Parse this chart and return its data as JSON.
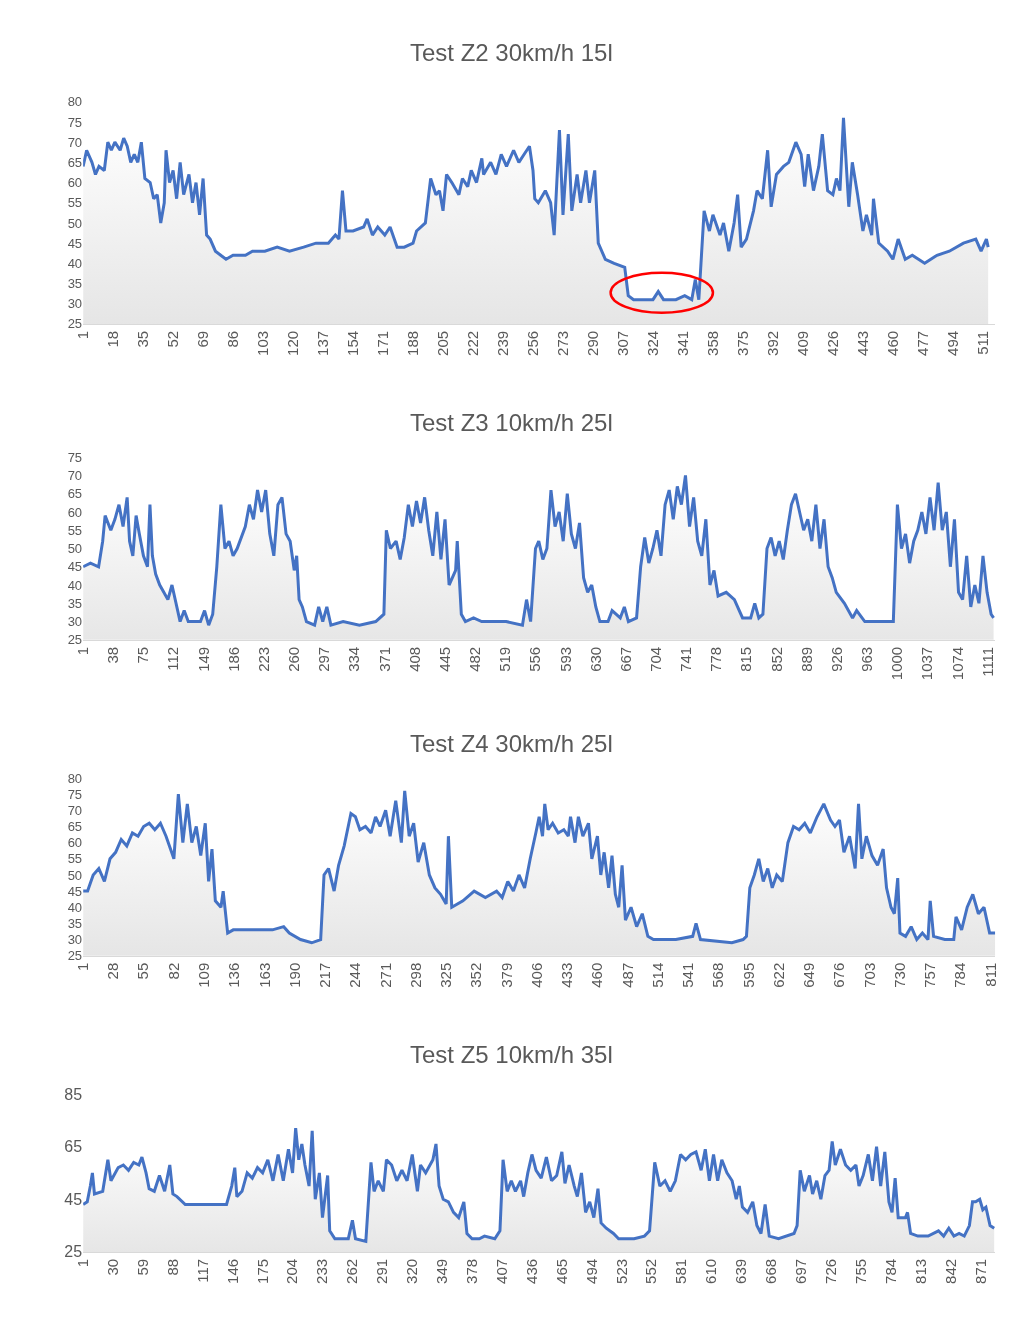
{
  "chart_data": [
    {
      "type": "area",
      "title": "Test Z2 30km/h 15l",
      "xlim": [
        1,
        518
      ],
      "ylim": [
        25,
        80
      ],
      "yticks": [
        25,
        30,
        35,
        40,
        45,
        50,
        55,
        60,
        65,
        70,
        75,
        80
      ],
      "xticks": [
        1,
        18,
        35,
        52,
        69,
        86,
        103,
        120,
        137,
        154,
        171,
        188,
        205,
        222,
        239,
        256,
        273,
        290,
        307,
        324,
        341,
        358,
        375,
        392,
        409,
        426,
        443,
        460,
        477,
        494,
        511
      ],
      "grid": false,
      "line_style": "solid",
      "marker": "none",
      "series": [
        {
          "color": "#4472c4",
          "x": [
            1,
            3,
            6,
            8,
            10,
            13,
            15,
            17,
            19,
            22,
            24,
            26,
            28,
            30,
            32,
            34,
            36,
            39,
            41,
            43,
            45,
            47,
            48,
            50,
            52,
            54,
            56,
            58,
            61,
            63,
            65,
            67,
            69,
            71,
            73,
            76,
            79,
            82,
            86,
            93,
            97,
            104,
            111,
            118,
            126,
            133,
            140,
            144,
            146,
            148,
            150,
            154,
            160,
            162,
            165,
            168,
            172,
            175,
            179,
            183,
            188,
            190,
            195,
            198,
            201,
            203,
            205,
            207,
            210,
            214,
            216,
            219,
            221,
            224,
            227,
            228,
            232,
            235,
            238,
            241,
            245,
            248,
            251,
            254,
            256,
            257,
            259,
            263,
            266,
            268,
            271,
            273,
            276,
            278,
            281,
            283,
            286,
            288,
            291,
            293,
            297,
            302,
            308,
            310,
            313,
            319,
            324,
            327,
            330,
            337,
            342,
            346,
            348,
            350,
            353,
            356,
            358,
            362,
            364,
            367,
            370,
            372,
            374,
            377,
            381,
            383,
            386,
            389,
            391,
            394,
            398,
            401,
            405,
            408,
            410,
            412,
            415,
            418,
            420,
            423,
            426,
            428,
            430,
            432,
            435,
            437,
            440,
            443,
            445,
            448,
            449,
            452,
            457,
            460,
            463,
            467,
            471,
            478,
            485,
            492,
            500,
            507,
            510,
            513,
            514
          ],
          "values": [
            64,
            68,
            65,
            62,
            64,
            63,
            70,
            68,
            70,
            68,
            71,
            69,
            65,
            67,
            65,
            70,
            61,
            60,
            56,
            57,
            50,
            55,
            68,
            60,
            63,
            56,
            65,
            57,
            62,
            55,
            60,
            52,
            61,
            47,
            46,
            43,
            42,
            41,
            42,
            42,
            43,
            43,
            44,
            43,
            44,
            45,
            45,
            47,
            46,
            58,
            48,
            48,
            49,
            51,
            47,
            49,
            47,
            49,
            44,
            44,
            45,
            48,
            50,
            61,
            57,
            58,
            53,
            62,
            60,
            57,
            61,
            59,
            63,
            60,
            66,
            62,
            65,
            62,
            67,
            64,
            68,
            65,
            67,
            69,
            63,
            56,
            55,
            58,
            55,
            47,
            73,
            52,
            72,
            53,
            62,
            55,
            63,
            55,
            63,
            45,
            41,
            40,
            39,
            32,
            31,
            31,
            31,
            33,
            31,
            31,
            32,
            31,
            36,
            31,
            53,
            48,
            52,
            47,
            50,
            43,
            50,
            57,
            44,
            46,
            53,
            58,
            56,
            68,
            54,
            62,
            64,
            65,
            70,
            67,
            59,
            67,
            58,
            64,
            72,
            58,
            57,
            61,
            58,
            76,
            54,
            65,
            57,
            48,
            52,
            47,
            56,
            45,
            43,
            41,
            46,
            41,
            42,
            40,
            42,
            43,
            45,
            46,
            43,
            46,
            44
          ]
        }
      ]
    },
    {
      "type": "area",
      "title": "Test Z3 10km/h 25l",
      "xlim": [
        1,
        1120
      ],
      "ylim": [
        25,
        75
      ],
      "yticks": [
        25,
        30,
        35,
        40,
        45,
        50,
        55,
        60,
        65,
        70,
        75
      ],
      "xticks": [
        1,
        38,
        75,
        112,
        149,
        186,
        223,
        260,
        297,
        334,
        371,
        408,
        445,
        482,
        519,
        556,
        593,
        630,
        667,
        704,
        741,
        778,
        815,
        852,
        889,
        926,
        963,
        1000,
        1037,
        1074,
        1111
      ],
      "grid": false,
      "line_style": "solid",
      "marker": "none",
      "series": [
        {
          "color": "#4472c4",
          "x": [
            1,
            10,
            20,
            25,
            28,
            35,
            40,
            45,
            50,
            55,
            58,
            62,
            66,
            70,
            75,
            80,
            83,
            86,
            90,
            95,
            100,
            105,
            110,
            120,
            125,
            130,
            145,
            150,
            155,
            160,
            165,
            170,
            175,
            180,
            185,
            190,
            200,
            205,
            210,
            215,
            220,
            225,
            230,
            235,
            240,
            245,
            250,
            255,
            260,
            263,
            266,
            270,
            275,
            285,
            290,
            295,
            300,
            305,
            320,
            340,
            360,
            370,
            373,
            378,
            385,
            390,
            395,
            400,
            405,
            410,
            415,
            420,
            425,
            430,
            435,
            440,
            445,
            450,
            458,
            460,
            465,
            470,
            480,
            490,
            520,
            540,
            545,
            550,
            556,
            560,
            565,
            570,
            575,
            580,
            585,
            590,
            595,
            600,
            605,
            610,
            615,
            620,
            625,
            630,
            635,
            645,
            650,
            660,
            665,
            670,
            680,
            685,
            690,
            695,
            700,
            705,
            710,
            715,
            720,
            725,
            730,
            735,
            740,
            745,
            750,
            755,
            760,
            765,
            770,
            775,
            780,
            790,
            800,
            810,
            820,
            825,
            830,
            835,
            840,
            845,
            850,
            855,
            860,
            865,
            870,
            875,
            880,
            885,
            890,
            895,
            900,
            905,
            910,
            915,
            920,
            925,
            935,
            945,
            950,
            960,
            980,
            995,
            1000,
            1005,
            1010,
            1015,
            1020,
            1025,
            1030,
            1035,
            1040,
            1045,
            1050,
            1055,
            1060,
            1065,
            1070,
            1075,
            1080,
            1085,
            1090,
            1095,
            1100,
            1105,
            1110,
            1115,
            1118
          ],
          "values": [
            45,
            46,
            45,
            52,
            59,
            55,
            58,
            62,
            56,
            64,
            52,
            48,
            59,
            54,
            48,
            45,
            62,
            48,
            43,
            40,
            38,
            36,
            40,
            30,
            33,
            30,
            30,
            33,
            29,
            32,
            45,
            62,
            50,
            52,
            48,
            50,
            56,
            62,
            58,
            66,
            60,
            66,
            54,
            48,
            62,
            64,
            54,
            52,
            44,
            48,
            36,
            34,
            30,
            29,
            34,
            30,
            34,
            29,
            30,
            29,
            30,
            32,
            55,
            50,
            52,
            47,
            53,
            62,
            56,
            63,
            57,
            64,
            55,
            48,
            60,
            47,
            58,
            40,
            44,
            52,
            32,
            30,
            31,
            30,
            30,
            29,
            36,
            30,
            50,
            52,
            47,
            50,
            66,
            56,
            60,
            52,
            65,
            54,
            50,
            57,
            42,
            38,
            40,
            34,
            30,
            30,
            33,
            31,
            34,
            30,
            31,
            45,
            53,
            46,
            50,
            55,
            48,
            62,
            66,
            58,
            67,
            62,
            70,
            56,
            64,
            52,
            48,
            58,
            40,
            44,
            37,
            38,
            36,
            31,
            31,
            35,
            31,
            32,
            50,
            53,
            48,
            52,
            47,
            55,
            62,
            65,
            60,
            55,
            58,
            52,
            62,
            50,
            58,
            45,
            42,
            38,
            35,
            31,
            33,
            30,
            30,
            30,
            62,
            50,
            54,
            46,
            52,
            55,
            60,
            54,
            64,
            55,
            68,
            55,
            60,
            45,
            58,
            38,
            36,
            48,
            34,
            40,
            35,
            48,
            38,
            32,
            31
          ]
        }
      ]
    },
    {
      "type": "area",
      "title": "Test Z4 30km/h 25l",
      "xlim": [
        1,
        815
      ],
      "ylim": [
        25,
        80
      ],
      "yticks": [
        25,
        30,
        35,
        40,
        45,
        50,
        55,
        60,
        65,
        70,
        75,
        80
      ],
      "xticks": [
        1,
        28,
        55,
        82,
        109,
        136,
        163,
        190,
        217,
        244,
        271,
        298,
        325,
        352,
        379,
        406,
        433,
        460,
        487,
        514,
        541,
        568,
        595,
        622,
        649,
        676,
        703,
        730,
        757,
        784,
        811
      ],
      "grid": false,
      "line_style": "solid",
      "marker": "none",
      "series": [
        {
          "color": "#4472c4",
          "x": [
            1,
            5,
            10,
            15,
            20,
            25,
            30,
            35,
            40,
            45,
            50,
            55,
            60,
            65,
            70,
            75,
            80,
            82,
            86,
            90,
            94,
            98,
            102,
            106,
            110,
            113,
            116,
            119,
            124,
            126,
            130,
            135,
            150,
            170,
            180,
            185,
            195,
            205,
            213,
            216,
            220,
            225,
            229,
            234,
            240,
            244,
            248,
            253,
            258,
            262,
            266,
            271,
            275,
            280,
            285,
            288,
            292,
            296,
            300,
            305,
            310,
            315,
            320,
            325,
            327,
            330,
            340,
            350,
            360,
            370,
            375,
            380,
            385,
            390,
            395,
            400,
            405,
            408,
            411,
            413,
            416,
            420,
            425,
            430,
            434,
            436,
            440,
            443,
            447,
            452,
            455,
            460,
            463,
            466,
            470,
            473,
            476,
            479,
            482,
            485,
            490,
            495,
            500,
            505,
            510,
            530,
            545,
            548,
            552,
            580,
            590,
            593,
            596,
            600,
            604,
            608,
            612,
            616,
            620,
            625,
            630,
            635,
            640,
            645,
            650,
            656,
            662,
            668,
            672,
            676,
            680,
            685,
            690,
            693,
            696,
            700,
            705,
            710,
            715,
            718,
            722,
            725,
            728,
            730,
            735,
            740,
            745,
            750,
            755,
            757,
            760,
            770,
            778,
            780,
            785,
            790,
            795,
            800,
            805,
            810,
            815
          ],
          "values": [
            45,
            45,
            50,
            52,
            48,
            55,
            57,
            61,
            59,
            63,
            62,
            65,
            66,
            64,
            66,
            62,
            57,
            55,
            75,
            60,
            72,
            60,
            65,
            56,
            66,
            48,
            58,
            42,
            40,
            45,
            32,
            33,
            33,
            33,
            34,
            32,
            30,
            29,
            30,
            50,
            52,
            45,
            53,
            59,
            69,
            68,
            64,
            65,
            63,
            68,
            65,
            70,
            62,
            73,
            60,
            76,
            62,
            66,
            54,
            60,
            50,
            46,
            44,
            41,
            62,
            40,
            42,
            45,
            43,
            45,
            43,
            48,
            45,
            50,
            46,
            55,
            63,
            68,
            62,
            72,
            64,
            66,
            63,
            64,
            62,
            68,
            60,
            68,
            62,
            66,
            55,
            62,
            50,
            57,
            46,
            56,
            44,
            40,
            53,
            36,
            40,
            34,
            38,
            31,
            30,
            30,
            31,
            35,
            30,
            29,
            30,
            31,
            46,
            50,
            55,
            48,
            52,
            46,
            50,
            48,
            60,
            65,
            64,
            66,
            63,
            68,
            72,
            67,
            65,
            67,
            57,
            62,
            52,
            72,
            55,
            62,
            56,
            53,
            58,
            46,
            40,
            38,
            49,
            32,
            31,
            34,
            30,
            32,
            30,
            42,
            31,
            30,
            30,
            37,
            33,
            40,
            44,
            38,
            40,
            32,
            32
          ]
        }
      ]
    },
    {
      "type": "area",
      "title": "Test Z5 10km/h 35l",
      "xlim": [
        1,
        885
      ],
      "ylim": [
        25,
        85
      ],
      "yticks": [
        25,
        45,
        65,
        85
      ],
      "xticks": [
        1,
        30,
        59,
        88,
        117,
        146,
        175,
        204,
        233,
        262,
        291,
        320,
        349,
        378,
        407,
        436,
        465,
        494,
        523,
        552,
        581,
        610,
        639,
        668,
        697,
        726,
        755,
        784,
        813,
        842,
        871
      ],
      "grid": false,
      "line_style": "solid",
      "marker": "none",
      "series": [
        {
          "color": "#4472c4",
          "x": [
            1,
            5,
            8,
            10,
            12,
            20,
            25,
            28,
            35,
            40,
            45,
            50,
            55,
            58,
            62,
            65,
            70,
            75,
            80,
            85,
            88,
            92,
            100,
            110,
            140,
            145,
            148,
            150,
            155,
            160,
            165,
            170,
            175,
            180,
            185,
            190,
            195,
            200,
            204,
            207,
            210,
            213,
            216,
            220,
            223,
            226,
            230,
            233,
            238,
            240,
            245,
            250,
            258,
            262,
            265,
            275,
            280,
            283,
            287,
            292,
            295,
            300,
            305,
            310,
            315,
            320,
            325,
            328,
            333,
            340,
            343,
            346,
            350,
            355,
            360,
            365,
            370,
            373,
            378,
            385,
            390,
            400,
            405,
            408,
            412,
            416,
            420,
            425,
            428,
            432,
            436,
            440,
            445,
            450,
            455,
            460,
            465,
            468,
            472,
            477,
            480,
            484,
            488,
            492,
            496,
            500,
            503,
            508,
            515,
            520,
            535,
            545,
            550,
            555,
            560,
            565,
            570,
            575,
            580,
            585,
            590,
            595,
            600,
            604,
            608,
            612,
            616,
            620,
            625,
            630,
            634,
            637,
            640,
            645,
            650,
            654,
            658,
            662,
            666,
            675,
            690,
            693,
            696,
            700,
            705,
            708,
            712,
            716,
            720,
            724,
            727,
            730,
            735,
            740,
            745,
            750,
            753,
            757,
            762,
            766,
            770,
            774,
            778,
            782,
            785,
            788,
            791,
            798,
            800,
            803,
            810,
            820,
            830,
            835,
            840,
            845,
            850,
            855,
            860,
            863,
            866,
            870,
            873,
            876,
            880,
            884
          ],
          "values": [
            43,
            44,
            50,
            55,
            47,
            48,
            60,
            52,
            57,
            58,
            56,
            59,
            58,
            61,
            55,
            49,
            48,
            54,
            48,
            58,
            47,
            46,
            43,
            43,
            43,
            50,
            57,
            46,
            48,
            55,
            53,
            57,
            55,
            60,
            52,
            62,
            52,
            64,
            55,
            72,
            60,
            66,
            58,
            50,
            71,
            45,
            55,
            38,
            54,
            33,
            30,
            30,
            30,
            37,
            30,
            29,
            59,
            48,
            52,
            48,
            60,
            58,
            52,
            56,
            52,
            62,
            48,
            58,
            55,
            60,
            66,
            50,
            45,
            44,
            40,
            38,
            44,
            32,
            30,
            30,
            31,
            30,
            33,
            60,
            48,
            52,
            48,
            52,
            46,
            55,
            62,
            56,
            53,
            61,
            52,
            54,
            63,
            51,
            58,
            50,
            46,
            55,
            40,
            44,
            38,
            49,
            36,
            34,
            32,
            30,
            30,
            31,
            33,
            59,
            50,
            52,
            48,
            52,
            62,
            60,
            62,
            63,
            56,
            64,
            52,
            62,
            52,
            60,
            55,
            52,
            45,
            50,
            42,
            40,
            44,
            35,
            32,
            43,
            31,
            30,
            32,
            35,
            56,
            48,
            54,
            47,
            52,
            45,
            54,
            56,
            67,
            58,
            64,
            58,
            56,
            58,
            50,
            54,
            62,
            52,
            65,
            50,
            63,
            44,
            40,
            53,
            38,
            38,
            40,
            32,
            31,
            31,
            33,
            31,
            34,
            31,
            32,
            31,
            35,
            44,
            44,
            45,
            41,
            42,
            35,
            34
          ]
        }
      ]
    }
  ]
}
